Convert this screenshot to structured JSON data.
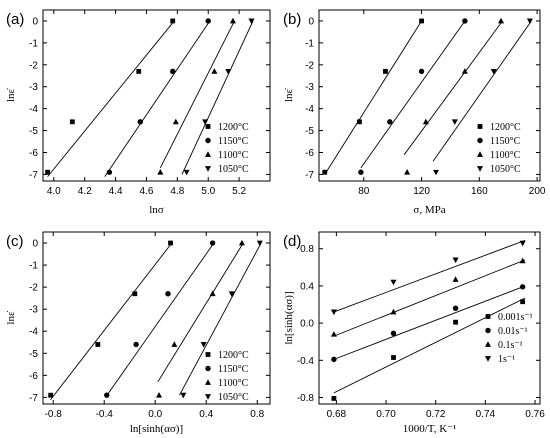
{
  "chart_data": [
    {
      "panel": "(a)",
      "type": "scatter",
      "xlabel": "lnσ",
      "ylabel": "lnε̇",
      "xlim": [
        3.93,
        5.4
      ],
      "ylim": [
        -7.3,
        0.5
      ],
      "xticks": [
        4.0,
        4.2,
        4.4,
        4.6,
        4.8,
        5.0,
        5.2
      ],
      "xtick_labels": [
        "4.0",
        "4.2",
        "4.4",
        "4.6",
        "4.8",
        "5.0",
        "5.2"
      ],
      "yticks": [
        0,
        -1,
        -2,
        -3,
        -4,
        -5,
        -6,
        -7
      ],
      "ytick_labels": [
        "0",
        "-1",
        "-2",
        "-3",
        "-4",
        "-5",
        "-6",
        "-7"
      ],
      "legend_placement": "bottom-right",
      "series": [
        {
          "name": "1200°C",
          "marker": "square",
          "x": [
            3.96,
            4.12,
            4.55,
            4.77
          ],
          "y": [
            -6.9,
            -4.6,
            -2.3,
            0
          ],
          "fit": [
            [
              3.96,
              -7.1
            ],
            [
              4.78,
              0
            ]
          ]
        },
        {
          "name": "1150°C",
          "marker": "circle",
          "x": [
            4.36,
            4.56,
            4.77,
            5.0
          ],
          "y": [
            -6.9,
            -4.6,
            -2.3,
            0
          ],
          "fit": [
            [
              4.33,
              -7.1
            ],
            [
              5.01,
              0
            ]
          ]
        },
        {
          "name": "1100°C",
          "marker": "triangle-up",
          "x": [
            4.69,
            4.79,
            5.04,
            5.16
          ],
          "y": [
            -6.9,
            -4.6,
            -2.3,
            0
          ],
          "fit": [
            [
              4.69,
              -6.7
            ],
            [
              5.17,
              0
            ]
          ]
        },
        {
          "name": "1050°C",
          "marker": "triangle-down",
          "x": [
            4.86,
            4.98,
            5.13,
            5.28
          ],
          "y": [
            -6.9,
            -4.6,
            -2.3,
            0
          ],
          "fit": [
            [
              4.83,
              -7.0
            ],
            [
              5.29,
              0
            ]
          ]
        }
      ]
    },
    {
      "panel": "(b)",
      "type": "scatter",
      "xlabel": "σ, MPa",
      "ylabel": "lnε̇",
      "xlim": [
        49,
        202
      ],
      "ylim": [
        -7.3,
        0.5
      ],
      "xticks": [
        80,
        120,
        160,
        200
      ],
      "xtick_labels": [
        "80",
        "120",
        "160",
        "200"
      ],
      "yticks": [
        0,
        -1,
        -2,
        -3,
        -4,
        -5,
        -6,
        -7
      ],
      "ytick_labels": [
        "0",
        "-1",
        "-2",
        "-3",
        "-4",
        "-5",
        "-6",
        "-7"
      ],
      "legend_placement": "bottom-right",
      "series": [
        {
          "name": "1200°C",
          "marker": "square",
          "x": [
            53,
            77,
            95,
            120
          ],
          "y": [
            -6.9,
            -4.6,
            -2.3,
            0
          ],
          "fit": [
            [
              53,
              -7.0
            ],
            [
              120,
              0
            ]
          ]
        },
        {
          "name": "1150°C",
          "marker": "circle",
          "x": [
            78,
            98,
            120,
            150
          ],
          "y": [
            -6.9,
            -4.6,
            -2.3,
            0
          ],
          "fit": [
            [
              78,
              -6.7
            ],
            [
              150,
              0
            ]
          ]
        },
        {
          "name": "1100°C",
          "marker": "triangle-up",
          "x": [
            110,
            123,
            150,
            175
          ],
          "y": [
            -6.9,
            -4.6,
            -2.3,
            0
          ],
          "fit": [
            [
              108,
              -6.1
            ],
            [
              176,
              0
            ]
          ]
        },
        {
          "name": "1050°C",
          "marker": "triangle-down",
          "x": [
            130,
            143,
            170,
            195
          ],
          "y": [
            -6.9,
            -4.6,
            -2.3,
            0
          ],
          "fit": [
            [
              128,
              -6.4
            ],
            [
              196,
              0
            ]
          ]
        }
      ]
    },
    {
      "panel": "(c)",
      "type": "scatter",
      "xlabel": "ln[sinh(ασ)]",
      "ylabel": "lnε̇",
      "xlim": [
        -0.88,
        0.9
      ],
      "ylim": [
        -7.3,
        0.5
      ],
      "xticks": [
        -0.8,
        -0.4,
        0.0,
        0.4,
        0.8
      ],
      "xtick_labels": [
        "-0.8",
        "-0.4",
        "0.0",
        "0.4",
        "0.8"
      ],
      "yticks": [
        0,
        -1,
        -2,
        -3,
        -4,
        -5,
        -6,
        -7
      ],
      "ytick_labels": [
        "0",
        "-1",
        "-2",
        "-3",
        "-4",
        "-5",
        "-6",
        "-7"
      ],
      "legend_placement": "bottom-right",
      "series": [
        {
          "name": "1200°C",
          "marker": "square",
          "x": [
            -0.82,
            -0.45,
            -0.16,
            0.12
          ],
          "y": [
            -6.9,
            -4.6,
            -2.3,
            0
          ],
          "fit": [
            [
              -0.82,
              -7.1
            ],
            [
              0.13,
              0
            ]
          ]
        },
        {
          "name": "1150°C",
          "marker": "circle",
          "x": [
            -0.38,
            -0.15,
            0.1,
            0.45
          ],
          "y": [
            -6.9,
            -4.6,
            -2.3,
            0
          ],
          "fit": [
            [
              -0.39,
              -7.0
            ],
            [
              0.46,
              0
            ]
          ]
        },
        {
          "name": "1100°C",
          "marker": "triangle-up",
          "x": [
            0.03,
            0.15,
            0.45,
            0.68
          ],
          "y": [
            -6.9,
            -4.6,
            -2.3,
            0
          ],
          "fit": [
            [
              0.02,
              -6.3
            ],
            [
              0.69,
              0
            ]
          ]
        },
        {
          "name": "1050°C",
          "marker": "triangle-down",
          "x": [
            0.22,
            0.38,
            0.6,
            0.82
          ],
          "y": [
            -6.9,
            -4.6,
            -2.3,
            0
          ],
          "fit": [
            [
              0.19,
              -6.9
            ],
            [
              0.83,
              0
            ]
          ]
        }
      ]
    },
    {
      "panel": "(d)",
      "type": "scatter",
      "xlabel": "1000/T, K⁻¹",
      "ylabel": "ln[sinh(ασ)]",
      "xlim": [
        0.673,
        0.762
      ],
      "ylim": [
        -0.87,
        0.98
      ],
      "xticks": [
        0.68,
        0.7,
        0.72,
        0.74,
        0.76
      ],
      "xtick_labels": [
        "0.68",
        "0.70",
        "0.72",
        "0.74",
        "0.76"
      ],
      "yticks": [
        0.8,
        0.4,
        0.0,
        -0.4,
        -0.8
      ],
      "ytick_labels": [
        "0.8",
        "0.4",
        "0.0",
        "-0.4",
        "-0.8"
      ],
      "legend_placement": "bottom-right",
      "series": [
        {
          "name": "0.001s⁻¹",
          "marker": "square",
          "x": [
            0.679,
            0.703,
            0.728,
            0.755
          ],
          "y": [
            -0.81,
            -0.37,
            0.01,
            0.23
          ],
          "fit": [
            [
              0.679,
              -0.75
            ],
            [
              0.756,
              0.27
            ]
          ]
        },
        {
          "name": "0.01s⁻¹",
          "marker": "circle",
          "x": [
            0.679,
            0.703,
            0.728,
            0.755
          ],
          "y": [
            -0.39,
            -0.11,
            0.16,
            0.39
          ],
          "fit": [
            [
              0.679,
              -0.39
            ],
            [
              0.756,
              0.4
            ]
          ]
        },
        {
          "name": "0.1s⁻¹",
          "marker": "triangle-up",
          "x": [
            0.679,
            0.703,
            0.728,
            0.755
          ],
          "y": [
            -0.12,
            0.12,
            0.47,
            0.67
          ],
          "fit": [
            [
              0.679,
              -0.14
            ],
            [
              0.756,
              0.68
            ]
          ]
        },
        {
          "name": "1s⁻¹",
          "marker": "triangle-down",
          "x": [
            0.679,
            0.703,
            0.728,
            0.755
          ],
          "y": [
            0.12,
            0.44,
            0.68,
            0.86
          ],
          "fit": [
            [
              0.679,
              0.12
            ],
            [
              0.756,
              0.89
            ]
          ]
        }
      ]
    }
  ]
}
